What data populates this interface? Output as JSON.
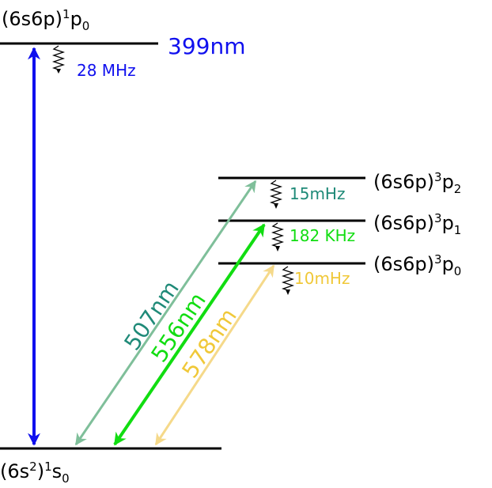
{
  "levels": {
    "p1_0": {
      "config": "(6s6p)",
      "mult": "1",
      "term": "p",
      "j": "0"
    },
    "p3_2": {
      "config": "(6s6p)",
      "mult": "3",
      "term": "p",
      "j": "2"
    },
    "p3_1": {
      "config": "(6s6p)",
      "mult": "3",
      "term": "p",
      "j": "1"
    },
    "p3_0": {
      "config": "(6s6p)",
      "mult": "3",
      "term": "p",
      "j": "0"
    },
    "ground": {
      "config_open": "(6s",
      "config_sup": "2",
      "config_close": ")",
      "mult": "1",
      "term": "s",
      "j": "0"
    }
  },
  "transitions": [
    {
      "id": "t399",
      "wavelength": "399nm",
      "linewidth": "28 MHz",
      "color": "#1010ee"
    },
    {
      "id": "t507",
      "wavelength": "507nm",
      "linewidth": "15mHz",
      "color": "#7fbf9a",
      "label_color": "#1f8a78",
      "linewidth_color": "#1f8a78"
    },
    {
      "id": "t556",
      "wavelength": "556nm",
      "linewidth": "182 KHz",
      "color": "#11dd11"
    },
    {
      "id": "t578",
      "wavelength": "578nm",
      "linewidth": "10mHz",
      "color": "#f5d98a",
      "label_color": "#f0c838",
      "linewidth_color": "#f0c838"
    }
  ]
}
